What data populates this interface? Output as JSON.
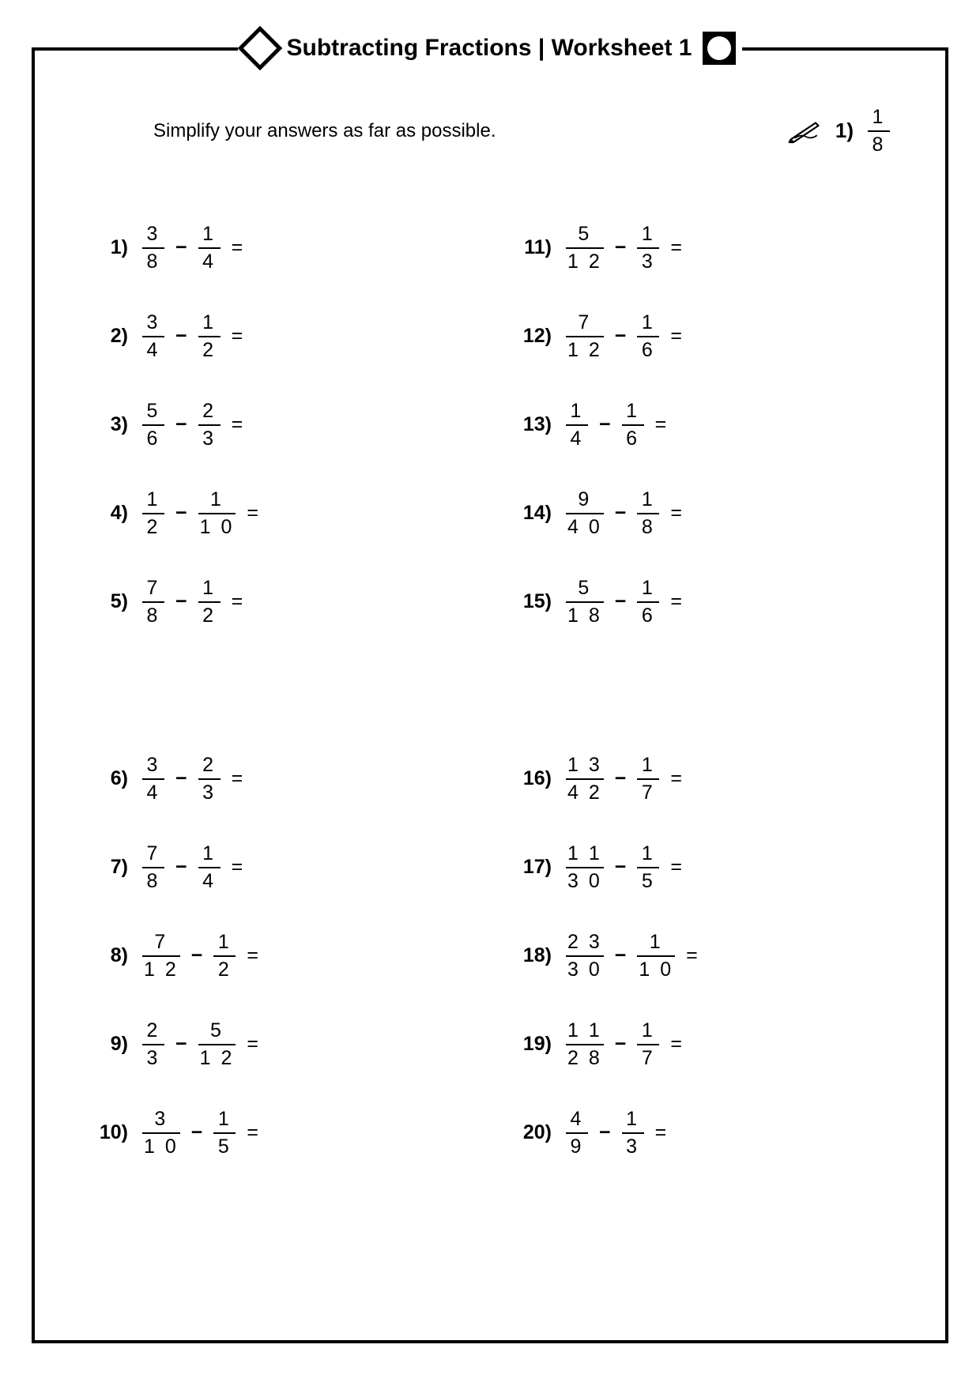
{
  "title": "Subtracting Fractions | Worksheet 1",
  "instruction": "Simplify your answers as far as possible.",
  "example": {
    "label": "1)",
    "num": "1",
    "den": "8"
  },
  "operator": "−",
  "equals": "=",
  "left_column": [
    {
      "n": "1)",
      "a_num": "3",
      "a_den": "8",
      "b_num": "1",
      "b_den": "4"
    },
    {
      "n": "2)",
      "a_num": "3",
      "a_den": "4",
      "b_num": "1",
      "b_den": "2"
    },
    {
      "n": "3)",
      "a_num": "5",
      "a_den": "6",
      "b_num": "2",
      "b_den": "3"
    },
    {
      "n": "4)",
      "a_num": "1",
      "a_den": "2",
      "b_num": "1",
      "b_den": "1 0"
    },
    {
      "n": "5)",
      "a_num": "7",
      "a_den": "8",
      "b_num": "1",
      "b_den": "2"
    },
    {
      "gap": true
    },
    {
      "n": "6)",
      "a_num": "3",
      "a_den": "4",
      "b_num": "2",
      "b_den": "3"
    },
    {
      "n": "7)",
      "a_num": "7",
      "a_den": "8",
      "b_num": "1",
      "b_den": "4"
    },
    {
      "n": "8)",
      "a_num": "7",
      "a_den": "1 2",
      "b_num": "1",
      "b_den": "2"
    },
    {
      "n": "9)",
      "a_num": "2",
      "a_den": "3",
      "b_num": "5",
      "b_den": "1 2"
    },
    {
      "n": "10)",
      "a_num": "3",
      "a_den": "1 0",
      "b_num": "1",
      "b_den": "5"
    }
  ],
  "right_column": [
    {
      "n": "11)",
      "a_num": "5",
      "a_den": "1 2",
      "b_num": "1",
      "b_den": "3"
    },
    {
      "n": "12)",
      "a_num": "7",
      "a_den": "1 2",
      "b_num": "1",
      "b_den": "6"
    },
    {
      "n": "13)",
      "a_num": "1",
      "a_den": "4",
      "b_num": "1",
      "b_den": "6"
    },
    {
      "n": "14)",
      "a_num": "9",
      "a_den": "4 0",
      "b_num": "1",
      "b_den": "8"
    },
    {
      "n": "15)",
      "a_num": "5",
      "a_den": "1 8",
      "b_num": "1",
      "b_den": "6"
    },
    {
      "gap": true
    },
    {
      "n": "16)",
      "a_num": "1 3",
      "a_den": "4 2",
      "b_num": "1",
      "b_den": "7"
    },
    {
      "n": "17)",
      "a_num": "1 1",
      "a_den": "3 0",
      "b_num": "1",
      "b_den": "5"
    },
    {
      "n": "18)",
      "a_num": "2 3",
      "a_den": "3 0",
      "b_num": "1",
      "b_den": "1 0"
    },
    {
      "n": "19)",
      "a_num": "1 1",
      "a_den": "2 8",
      "b_num": "1",
      "b_den": "7"
    },
    {
      "n": "20)",
      "a_num": "4",
      "a_den": "9",
      "b_num": "1",
      "b_den": "3"
    }
  ]
}
